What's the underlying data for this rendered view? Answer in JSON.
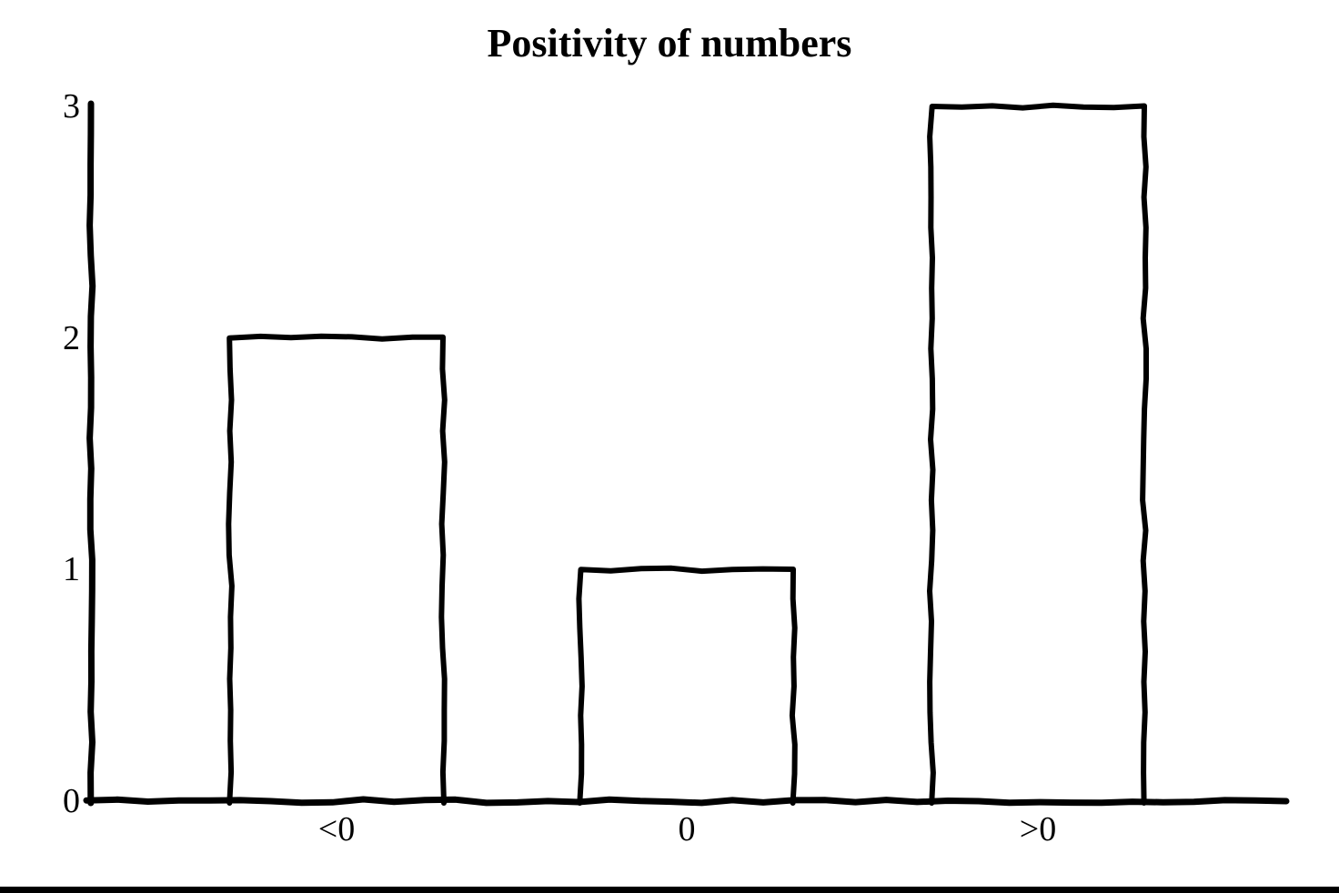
{
  "chart_data": {
    "type": "bar",
    "title": "Positivity of numbers",
    "categories": [
      "<0",
      "0",
      ">0"
    ],
    "values": [
      2,
      1,
      3
    ],
    "y_tick_labels": [
      "0",
      "1",
      "2",
      "3"
    ],
    "y_ticks": [
      0,
      1,
      2,
      3
    ],
    "ylim": [
      0,
      3
    ],
    "xlabel": "",
    "ylabel": "",
    "legend": "none",
    "grid": "off",
    "style": "hand-drawn-outline",
    "bar_fill": "#ffffff",
    "stroke_color": "#000000",
    "background": "#ffffff"
  },
  "page": {
    "bottom_border_color": "#000000"
  }
}
